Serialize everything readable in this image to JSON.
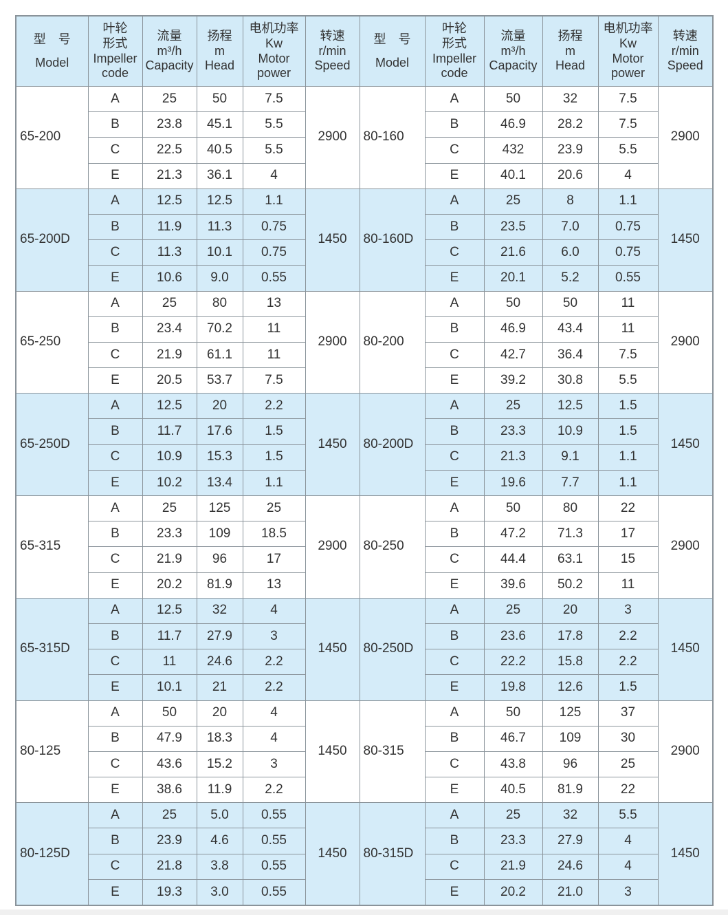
{
  "colors": {
    "header_bg": "#d3ebf8",
    "band_blue": "#d5ecf9",
    "band_white": "#ffffff",
    "border": "#8a939a"
  },
  "headers": {
    "model": [
      "型　号",
      "Model"
    ],
    "impeller": [
      "叶轮",
      "形式",
      "Impeller",
      "code"
    ],
    "capacity": [
      "流量",
      "m³/h",
      "Capacity"
    ],
    "head": [
      "扬程",
      "m",
      "Head"
    ],
    "power": [
      "电机功率",
      "Kw",
      "Motor",
      "power"
    ],
    "speed": [
      "转速",
      "r/min",
      "Speed"
    ]
  },
  "groups": [
    {
      "left": {
        "model": "65-200",
        "speed": "2900",
        "rows": [
          [
            "A",
            "25",
            "50",
            "7.5"
          ],
          [
            "B",
            "23.8",
            "45.1",
            "5.5"
          ],
          [
            "C",
            "22.5",
            "40.5",
            "5.5"
          ],
          [
            "E",
            "21.3",
            "36.1",
            "4"
          ]
        ]
      },
      "right": {
        "model": "80-160",
        "speed": "2900",
        "rows": [
          [
            "A",
            "50",
            "32",
            "7.5"
          ],
          [
            "B",
            "46.9",
            "28.2",
            "7.5"
          ],
          [
            "C",
            "432",
            "23.9",
            "5.5"
          ],
          [
            "E",
            "40.1",
            "20.6",
            "4"
          ]
        ]
      }
    },
    {
      "left": {
        "model": "65-200D",
        "speed": "1450",
        "rows": [
          [
            "A",
            "12.5",
            "12.5",
            "1.1"
          ],
          [
            "B",
            "11.9",
            "11.3",
            "0.75"
          ],
          [
            "C",
            "11.3",
            "10.1",
            "0.75"
          ],
          [
            "E",
            "10.6",
            "9.0",
            "0.55"
          ]
        ]
      },
      "right": {
        "model": "80-160D",
        "speed": "1450",
        "rows": [
          [
            "A",
            "25",
            "8",
            "1.1"
          ],
          [
            "B",
            "23.5",
            "7.0",
            "0.75"
          ],
          [
            "C",
            "21.6",
            "6.0",
            "0.75"
          ],
          [
            "E",
            "20.1",
            "5.2",
            "0.55"
          ]
        ]
      }
    },
    {
      "left": {
        "model": "65-250",
        "speed": "2900",
        "rows": [
          [
            "A",
            "25",
            "80",
            "13"
          ],
          [
            "B",
            "23.4",
            "70.2",
            "11"
          ],
          [
            "C",
            "21.9",
            "61.1",
            "11"
          ],
          [
            "E",
            "20.5",
            "53.7",
            "7.5"
          ]
        ]
      },
      "right": {
        "model": "80-200",
        "speed": "2900",
        "rows": [
          [
            "A",
            "50",
            "50",
            "11"
          ],
          [
            "B",
            "46.9",
            "43.4",
            "11"
          ],
          [
            "C",
            "42.7",
            "36.4",
            "7.5"
          ],
          [
            "E",
            "39.2",
            "30.8",
            "5.5"
          ]
        ]
      }
    },
    {
      "left": {
        "model": "65-250D",
        "speed": "1450",
        "rows": [
          [
            "A",
            "12.5",
            "20",
            "2.2"
          ],
          [
            "B",
            "11.7",
            "17.6",
            "1.5"
          ],
          [
            "C",
            "10.9",
            "15.3",
            "1.5"
          ],
          [
            "E",
            "10.2",
            "13.4",
            "1.1"
          ]
        ]
      },
      "right": {
        "model": "80-200D",
        "speed": "1450",
        "rows": [
          [
            "A",
            "25",
            "12.5",
            "1.5"
          ],
          [
            "B",
            "23.3",
            "10.9",
            "1.5"
          ],
          [
            "C",
            "21.3",
            "9.1",
            "1.1"
          ],
          [
            "E",
            "19.6",
            "7.7",
            "1.1"
          ]
        ]
      }
    },
    {
      "left": {
        "model": "65-315",
        "speed": "2900",
        "rows": [
          [
            "A",
            "25",
            "125",
            "25"
          ],
          [
            "B",
            "23.3",
            "109",
            "18.5"
          ],
          [
            "C",
            "21.9",
            "96",
            "17"
          ],
          [
            "E",
            "20.2",
            "81.9",
            "13"
          ]
        ]
      },
      "right": {
        "model": "80-250",
        "speed": "2900",
        "rows": [
          [
            "A",
            "50",
            "80",
            "22"
          ],
          [
            "B",
            "47.2",
            "71.3",
            "17"
          ],
          [
            "C",
            "44.4",
            "63.1",
            "15"
          ],
          [
            "E",
            "39.6",
            "50.2",
            "11"
          ]
        ]
      }
    },
    {
      "left": {
        "model": "65-315D",
        "speed": "1450",
        "rows": [
          [
            "A",
            "12.5",
            "32",
            "4"
          ],
          [
            "B",
            "11.7",
            "27.9",
            "3"
          ],
          [
            "C",
            "11",
            "24.6",
            "2.2"
          ],
          [
            "E",
            "10.1",
            "21",
            "2.2"
          ]
        ]
      },
      "right": {
        "model": "80-250D",
        "speed": "1450",
        "rows": [
          [
            "A",
            "25",
            "20",
            "3"
          ],
          [
            "B",
            "23.6",
            "17.8",
            "2.2"
          ],
          [
            "C",
            "22.2",
            "15.8",
            "2.2"
          ],
          [
            "E",
            "19.8",
            "12.6",
            "1.5"
          ]
        ]
      }
    },
    {
      "left": {
        "model": "80-125",
        "speed": "1450",
        "rows": [
          [
            "A",
            "50",
            "20",
            "4"
          ],
          [
            "B",
            "47.9",
            "18.3",
            "4"
          ],
          [
            "C",
            "43.6",
            "15.2",
            "3"
          ],
          [
            "E",
            "38.6",
            "11.9",
            "2.2"
          ]
        ]
      },
      "right": {
        "model": "80-315",
        "speed": "2900",
        "rows": [
          [
            "A",
            "50",
            "125",
            "37"
          ],
          [
            "B",
            "46.7",
            "109",
            "30"
          ],
          [
            "C",
            "43.8",
            "96",
            "25"
          ],
          [
            "E",
            "40.5",
            "81.9",
            "22"
          ]
        ]
      }
    },
    {
      "left": {
        "model": "80-125D",
        "speed": "1450",
        "rows": [
          [
            "A",
            "25",
            "5.0",
            "0.55"
          ],
          [
            "B",
            "23.9",
            "4.6",
            "0.55"
          ],
          [
            "C",
            "21.8",
            "3.8",
            "0.55"
          ],
          [
            "E",
            "19.3",
            "3.0",
            "0.55"
          ]
        ]
      },
      "right": {
        "model": "80-315D",
        "speed": "1450",
        "rows": [
          [
            "A",
            "25",
            "32",
            "5.5"
          ],
          [
            "B",
            "23.3",
            "27.9",
            "4"
          ],
          [
            "C",
            "21.9",
            "24.6",
            "4"
          ],
          [
            "E",
            "20.2",
            "21.0",
            "3"
          ]
        ]
      }
    }
  ]
}
